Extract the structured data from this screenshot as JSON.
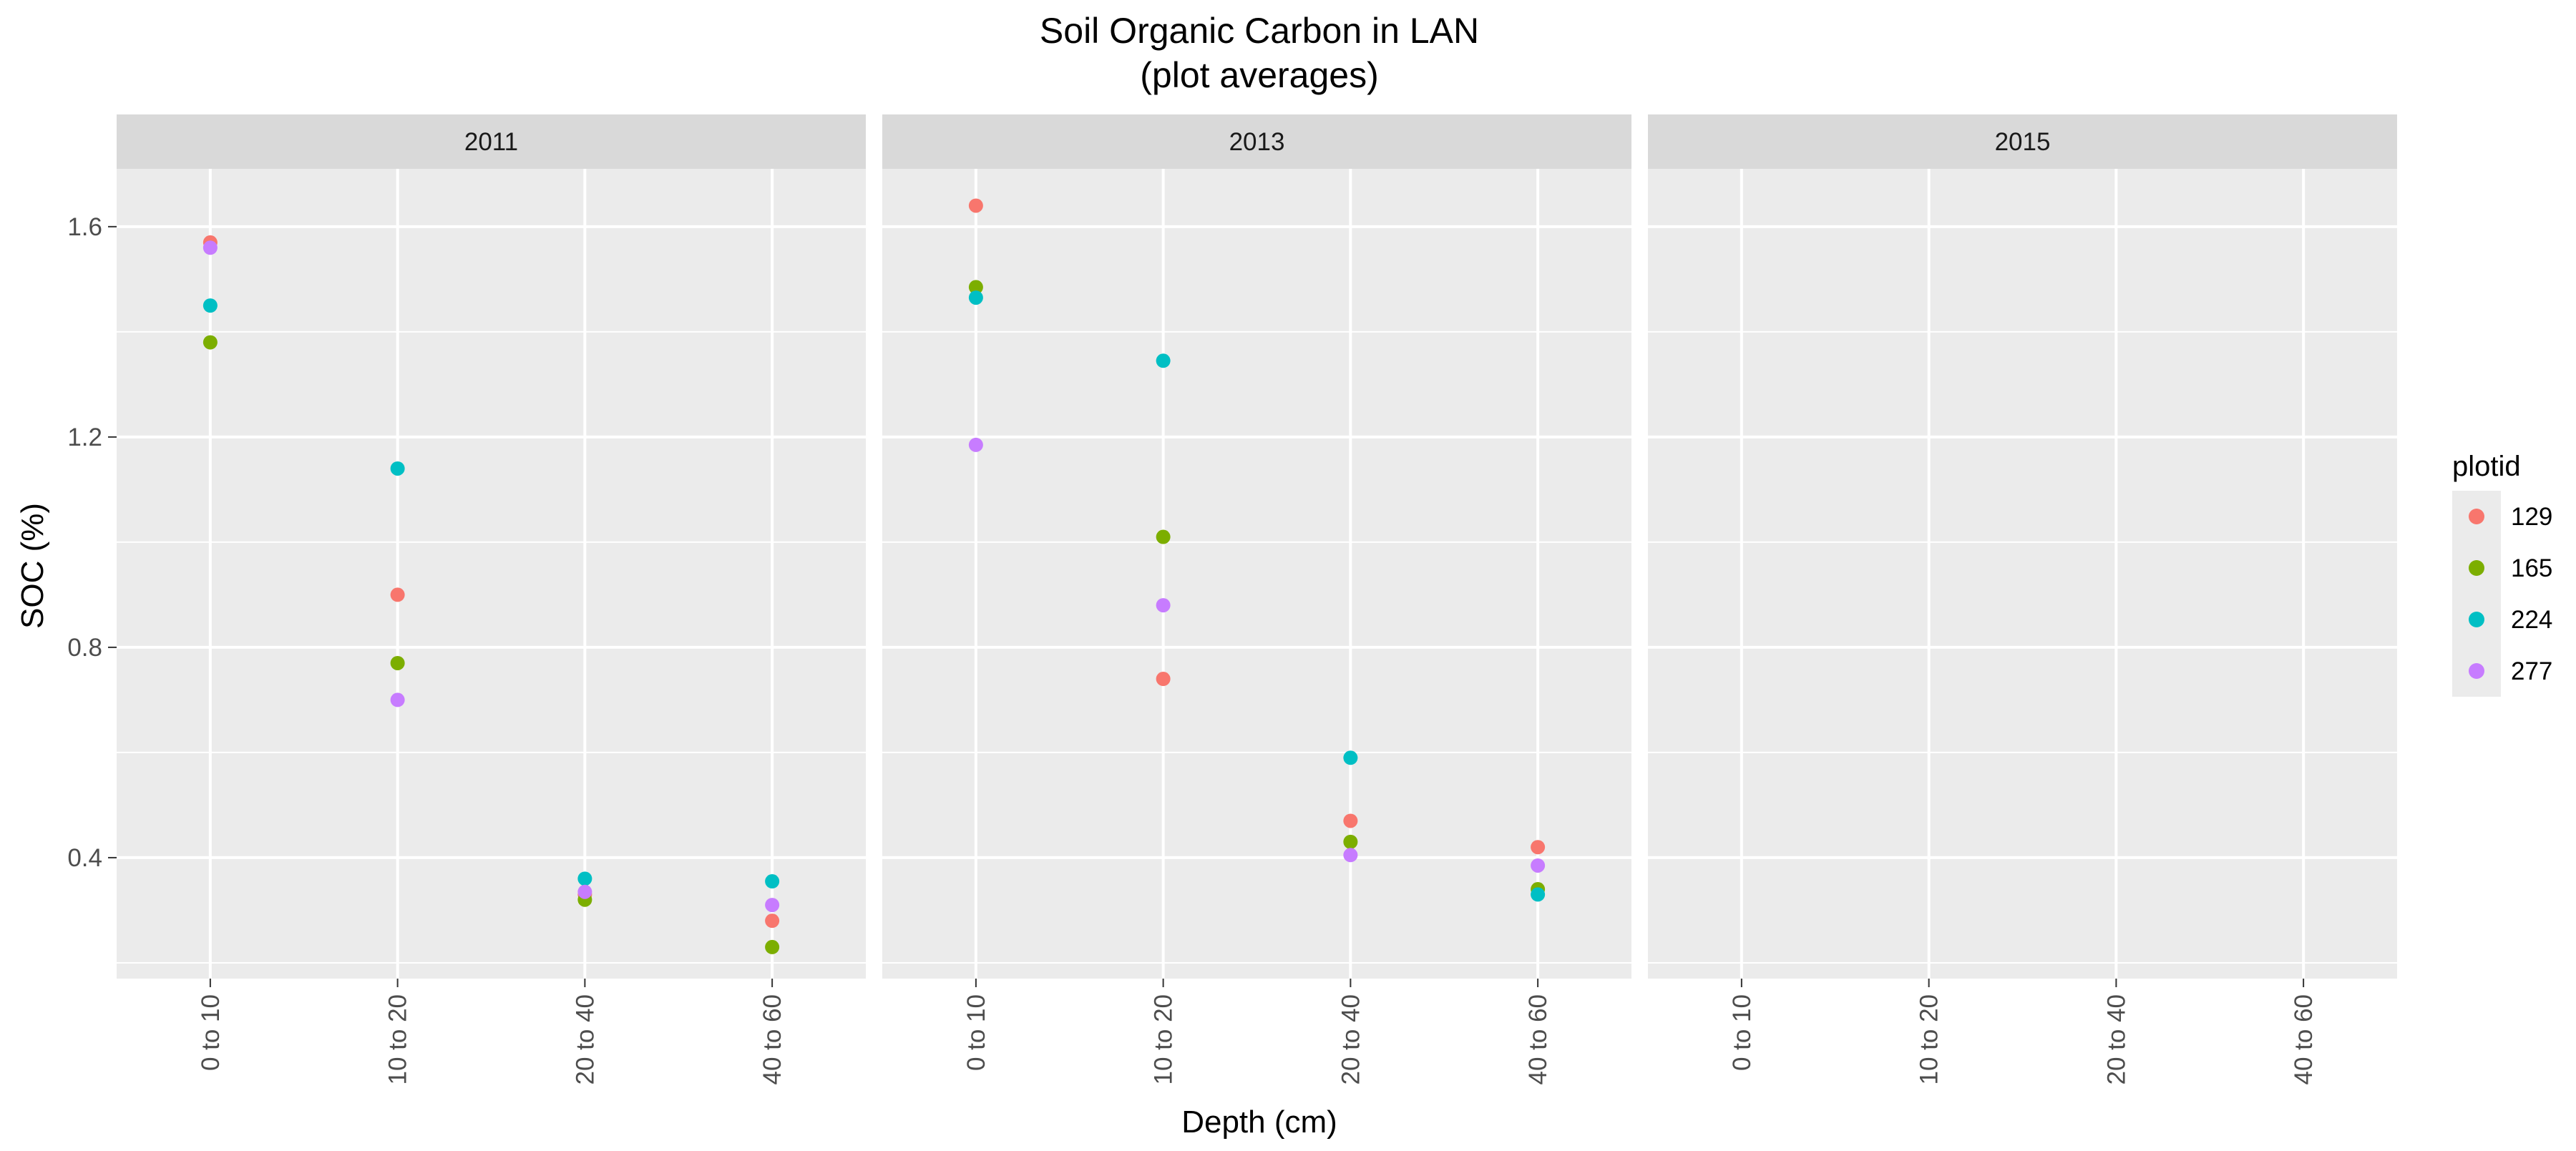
{
  "chart_data": {
    "type": "scatter",
    "title": "Soil Organic Carbon in LAN",
    "subtitle": "(plot averages)",
    "xlabel": "Depth (cm)",
    "ylabel": "SOC (%)",
    "categories": [
      "0 to 10",
      "10 to 20",
      "20 to 40",
      "40 to 60"
    ],
    "y_ticks": [
      "0.4",
      "0.8",
      "1.2",
      "1.6"
    ],
    "ylim": [
      0.17,
      1.71
    ],
    "grid": true,
    "legend_position": "right",
    "legend_title": "plotid",
    "panels": [
      {
        "label": "2011",
        "series": [
          {
            "name": "129",
            "color": "#F8766D",
            "values": [
              1.57,
              0.9,
              0.33,
              0.28
            ]
          },
          {
            "name": "165",
            "color": "#7CAE00",
            "values": [
              1.38,
              0.77,
              0.32,
              0.23
            ]
          },
          {
            "name": "224",
            "color": "#00BFC4",
            "values": [
              1.45,
              1.14,
              0.36,
              0.355
            ]
          },
          {
            "name": "277",
            "color": "#C77CFF",
            "values": [
              1.56,
              0.7,
              0.335,
              0.31
            ]
          }
        ]
      },
      {
        "label": "2013",
        "series": [
          {
            "name": "129",
            "color": "#F8766D",
            "values": [
              1.64,
              0.74,
              0.47,
              0.42
            ]
          },
          {
            "name": "165",
            "color": "#7CAE00",
            "values": [
              1.485,
              1.01,
              0.43,
              0.34
            ]
          },
          {
            "name": "224",
            "color": "#00BFC4",
            "values": [
              1.465,
              1.345,
              0.59,
              0.33
            ]
          },
          {
            "name": "277",
            "color": "#C77CFF",
            "values": [
              1.185,
              0.88,
              0.405,
              0.385
            ]
          }
        ]
      },
      {
        "label": "2015",
        "series": [
          {
            "name": "129",
            "color": "#F8766D",
            "values": [
              null,
              null,
              null,
              null
            ]
          },
          {
            "name": "165",
            "color": "#7CAE00",
            "values": [
              null,
              null,
              null,
              null
            ]
          },
          {
            "name": "224",
            "color": "#00BFC4",
            "values": [
              null,
              null,
              null,
              null
            ]
          },
          {
            "name": "277",
            "color": "#C77CFF",
            "values": [
              null,
              null,
              null,
              null
            ]
          }
        ]
      }
    ]
  },
  "colors": {
    "panel_background": "#EBEBEB",
    "strip_background": "#D9D9D9",
    "grid_line": "#FFFFFF"
  }
}
